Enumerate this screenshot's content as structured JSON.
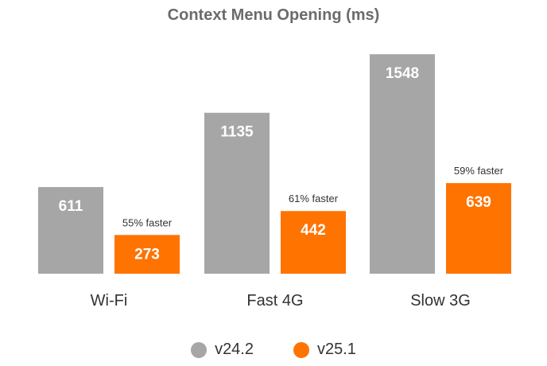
{
  "chart_data": {
    "type": "bar",
    "title": "Context Menu Opening (ms)",
    "categories": [
      "Wi-Fi",
      "Fast 4G",
      "Slow 3G"
    ],
    "series": [
      {
        "name": "v24.2",
        "values": [
          611,
          1135,
          1548
        ],
        "color": "#a6a6a6"
      },
      {
        "name": "v25.1",
        "values": [
          273,
          442,
          639
        ],
        "color": "#ff7300"
      }
    ],
    "annotations": [
      "55% faster",
      "61% faster",
      "59% faster"
    ],
    "ylim": [
      0,
      1600
    ],
    "grid": false,
    "legend": "bottom-center"
  }
}
